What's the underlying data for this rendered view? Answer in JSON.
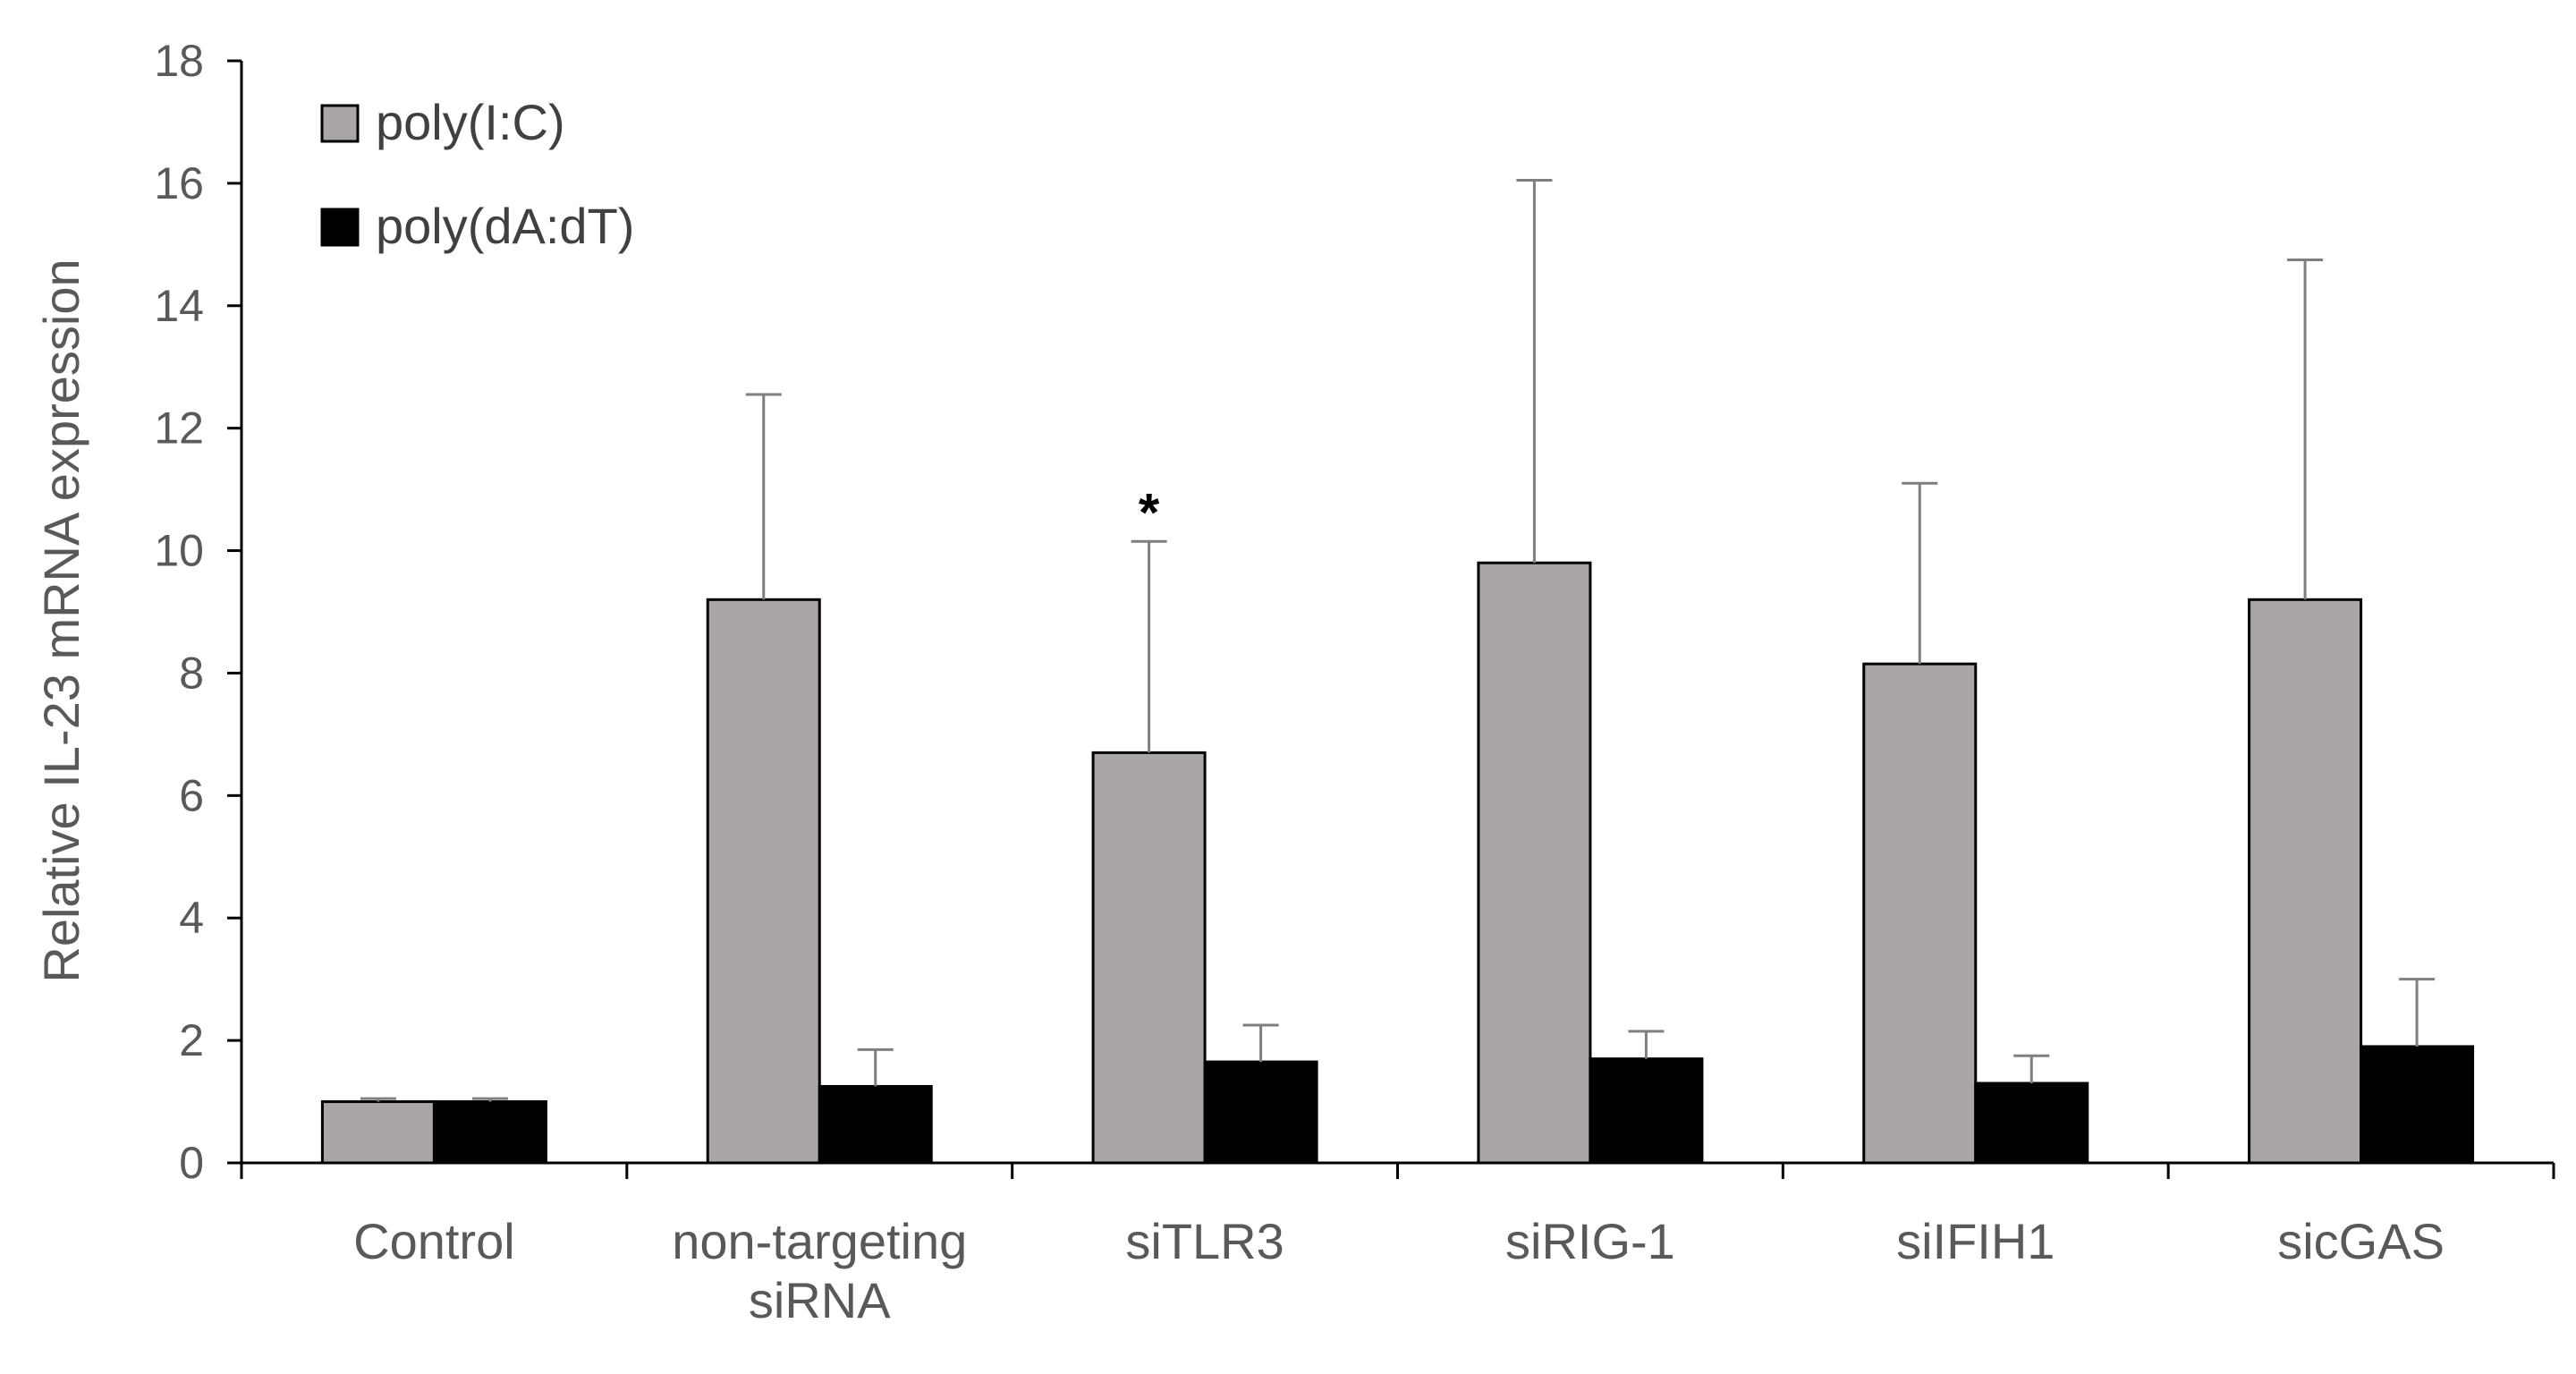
{
  "chart_data": {
    "type": "bar",
    "title": "",
    "xlabel": "",
    "ylabel": "Relative IL-23 mRNA expression",
    "ylim": [
      0,
      18
    ],
    "yticks": [
      "0",
      "2",
      "4",
      "6",
      "8",
      "10",
      "12",
      "14",
      "16",
      "18"
    ],
    "categories": [
      [
        "Control"
      ],
      [
        "non-targeting",
        "siRNA"
      ],
      [
        "siTLR3"
      ],
      [
        "siRIG-1"
      ],
      [
        "siIFIH1"
      ],
      [
        "sicGAS"
      ]
    ],
    "series": [
      {
        "name": "poly(I:C)",
        "color": "#aaa6a6",
        "values": [
          1.0,
          9.2,
          6.7,
          9.8,
          8.15,
          9.2
        ],
        "errors": [
          0.05,
          3.35,
          3.45,
          6.25,
          2.95,
          5.55
        ]
      },
      {
        "name": "poly(dA:dT)",
        "color": "#000000",
        "values": [
          1.0,
          1.25,
          1.65,
          1.7,
          1.3,
          1.9
        ],
        "errors": [
          0.05,
          0.6,
          0.6,
          0.45,
          0.45,
          1.1
        ]
      }
    ],
    "legend": {
      "position": "top-left"
    },
    "annotations": [
      {
        "category_index": 2,
        "series_index": 0,
        "text": "*"
      }
    ],
    "grid": false
  }
}
